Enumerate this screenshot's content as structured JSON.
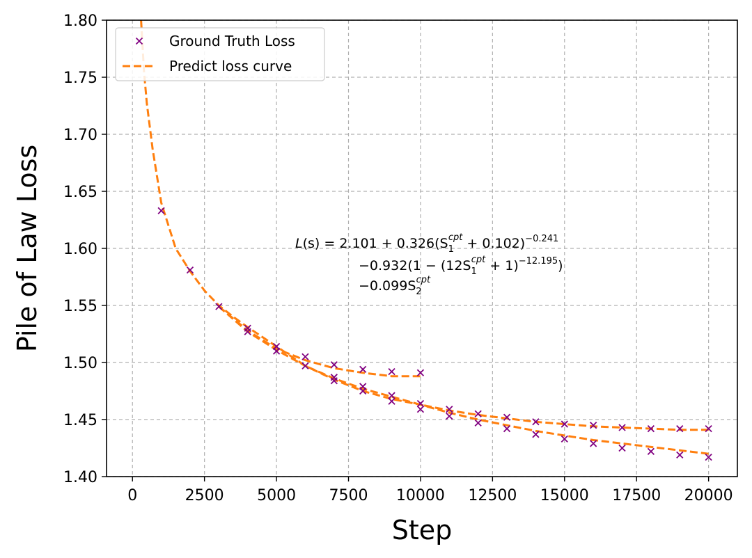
{
  "chart_data": {
    "type": "scatter",
    "xlabel": "Step",
    "ylabel": "Pile of Law Loss",
    "xlim": [
      -900,
      21000
    ],
    "ylim": [
      1.4,
      1.8
    ],
    "xticks": [
      0,
      2500,
      5000,
      7500,
      10000,
      12500,
      15000,
      17500,
      20000
    ],
    "xtick_labels": [
      "0",
      "2500",
      "5000",
      "7500",
      "10000",
      "12500",
      "15000",
      "17500",
      "20000"
    ],
    "yticks": [
      1.4,
      1.45,
      1.5,
      1.55,
      1.6,
      1.65,
      1.7,
      1.75,
      1.8
    ],
    "ytick_labels": [
      "1.40",
      "1.45",
      "1.50",
      "1.55",
      "1.60",
      "1.65",
      "1.70",
      "1.75",
      "1.80"
    ],
    "grid": true,
    "legend_position": "top-left",
    "colors": {
      "points": "#800080",
      "curve": "#ff7f0e",
      "grid": "#b0b0b0"
    },
    "series": [
      {
        "name": "Ground Truth Loss",
        "kind": "scatter",
        "marker": "x",
        "points": [
          [
            1000,
            1.633
          ],
          [
            2000,
            1.581
          ],
          [
            3000,
            1.549
          ],
          [
            4000,
            1.53
          ],
          [
            4000,
            1.527
          ],
          [
            5000,
            1.514
          ],
          [
            5000,
            1.51
          ],
          [
            6000,
            1.505
          ],
          [
            6000,
            1.497
          ],
          [
            7000,
            1.498
          ],
          [
            7000,
            1.487
          ],
          [
            7000,
            1.484
          ],
          [
            8000,
            1.494
          ],
          [
            8000,
            1.479
          ],
          [
            8000,
            1.475
          ],
          [
            9000,
            1.492
          ],
          [
            9000,
            1.471
          ],
          [
            9000,
            1.466
          ],
          [
            10000,
            1.491
          ],
          [
            10000,
            1.464
          ],
          [
            10000,
            1.459
          ],
          [
            11000,
            1.459
          ],
          [
            11000,
            1.453
          ],
          [
            12000,
            1.455
          ],
          [
            12000,
            1.447
          ],
          [
            13000,
            1.452
          ],
          [
            13000,
            1.442
          ],
          [
            14000,
            1.448
          ],
          [
            14000,
            1.437
          ],
          [
            15000,
            1.446
          ],
          [
            15000,
            1.433
          ],
          [
            16000,
            1.445
          ],
          [
            16000,
            1.429
          ],
          [
            17000,
            1.443
          ],
          [
            17000,
            1.425
          ],
          [
            18000,
            1.442
          ],
          [
            18000,
            1.422
          ],
          [
            19000,
            1.442
          ],
          [
            19000,
            1.419
          ],
          [
            20000,
            1.442
          ],
          [
            20000,
            1.417
          ]
        ]
      },
      {
        "name": "Predict loss curve",
        "kind": "line",
        "style": "dashed",
        "curves": [
          [
            [
              300,
              1.8
            ],
            [
              400,
              1.755
            ],
            [
              500,
              1.727
            ],
            [
              700,
              1.687
            ],
            [
              1000,
              1.64
            ],
            [
              1500,
              1.6
            ],
            [
              2000,
              1.58
            ],
            [
              2500,
              1.563
            ],
            [
              3000,
              1.55
            ],
            [
              3500,
              1.54
            ],
            [
              4000,
              1.531
            ],
            [
              5000,
              1.514
            ],
            [
              6000,
              1.497
            ],
            [
              7000,
              1.486
            ],
            [
              8000,
              1.477
            ],
            [
              9000,
              1.47
            ],
            [
              10000,
              1.463
            ],
            [
              11000,
              1.458
            ],
            [
              12000,
              1.454
            ],
            [
              13000,
              1.451
            ],
            [
              14000,
              1.448
            ],
            [
              15000,
              1.446
            ],
            [
              16000,
              1.444
            ],
            [
              17000,
              1.443
            ],
            [
              18000,
              1.442
            ],
            [
              19000,
              1.441
            ],
            [
              20000,
              1.441
            ]
          ],
          [
            [
              3000,
              1.549
            ],
            [
              4000,
              1.528
            ],
            [
              5000,
              1.512
            ],
            [
              6000,
              1.502
            ],
            [
              7000,
              1.495
            ],
            [
              8000,
              1.491
            ],
            [
              9000,
              1.488
            ],
            [
              10000,
              1.488
            ]
          ],
          [
            [
              3000,
              1.549
            ],
            [
              4000,
              1.527
            ],
            [
              5000,
              1.511
            ],
            [
              6000,
              1.497
            ],
            [
              7000,
              1.485
            ],
            [
              8000,
              1.475
            ],
            [
              9000,
              1.468
            ],
            [
              10000,
              1.463
            ],
            [
              11000,
              1.456
            ],
            [
              12000,
              1.45
            ],
            [
              13000,
              1.445
            ],
            [
              14000,
              1.44
            ],
            [
              15000,
              1.436
            ],
            [
              16000,
              1.432
            ],
            [
              17000,
              1.429
            ],
            [
              18000,
              1.426
            ],
            [
              19000,
              1.423
            ],
            [
              20000,
              1.42
            ]
          ]
        ]
      }
    ],
    "annotation": {
      "line1_parts": [
        "L",
        "(s) = 2.101 + 0.326(S",
        "1",
        "cpt",
        " + 0.102)",
        "−0.241"
      ],
      "line2_parts": [
        "−0.932(1 − (12S",
        "1",
        "cpt",
        " + 1)",
        "−12.195",
        ")"
      ],
      "line3_parts": [
        "−0.099S",
        "2",
        "cpt"
      ]
    }
  }
}
